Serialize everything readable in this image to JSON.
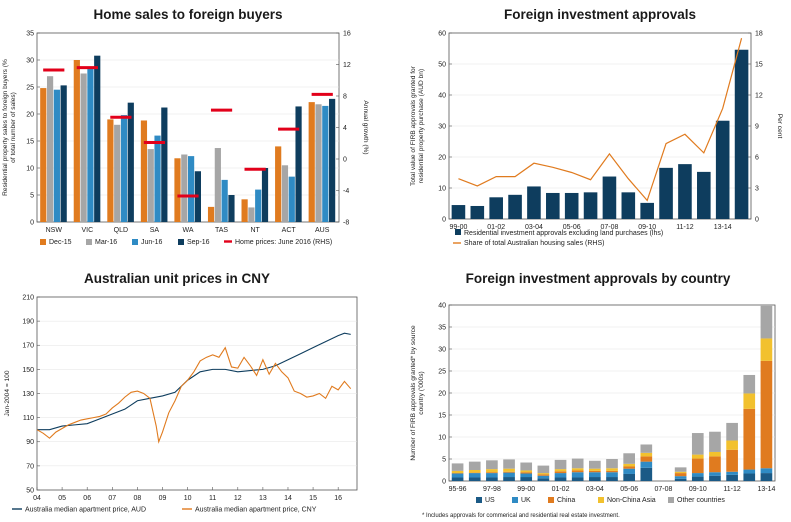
{
  "chart_data": [
    {
      "id": "home-sales",
      "type": "bar",
      "title": "Home sales to foreign buyers",
      "ylabel": "Residential property sales to foreign buyers (% of total number of sales)",
      "y2label": "Annual growth (%)",
      "ylim": [
        0,
        35
      ],
      "y2lim": [
        -8,
        16
      ],
      "yticks": [
        "0",
        "5",
        "10",
        "15",
        "20",
        "25",
        "30",
        "35"
      ],
      "y2ticks": [
        "-8",
        "-4",
        "0",
        "4",
        "8",
        "12",
        "16"
      ],
      "categories": [
        "NSW",
        "VIC",
        "QLD",
        "SA",
        "WA",
        "TAS",
        "NT",
        "ACT",
        "AUS"
      ],
      "series": [
        {
          "name": "Dec-15",
          "color": "#e07b1f",
          "values": [
            24.8,
            30.0,
            19.0,
            18.8,
            11.8,
            2.8,
            4.2,
            14.0,
            22.2
          ]
        },
        {
          "name": "Mar-16",
          "color": "#a6a6a6",
          "values": [
            27.0,
            27.5,
            18.0,
            13.5,
            12.5,
            13.7,
            2.7,
            10.5,
            21.8
          ]
        },
        {
          "name": "Jun-16",
          "color": "#2f8bc4",
          "values": [
            24.5,
            28.5,
            19.8,
            16.0,
            12.2,
            7.8,
            6.0,
            8.4,
            21.5
          ]
        },
        {
          "name": "Sep-16",
          "color": "#0e3d5e",
          "values": [
            25.3,
            30.8,
            22.1,
            21.2,
            9.4,
            5.0,
            10.0,
            21.4,
            22.8
          ]
        }
      ],
      "rhs_series": {
        "name": "Home prices: June 2016 (RHS)",
        "color": "#e2001a",
        "values": [
          11.3,
          11.6,
          5.3,
          2.1,
          -4.7,
          6.2,
          -1.3,
          3.8,
          8.2
        ]
      },
      "legend": "bottom"
    },
    {
      "id": "firb-approvals",
      "type": "bar",
      "title": "Foreign investment approvals",
      "ylabel": "Total value of FIRB approvals granted for residential property purchase (AUD bn)",
      "y2label": "Per cent",
      "ylim": [
        0,
        60
      ],
      "y2lim": [
        0,
        18
      ],
      "yticks": [
        "0",
        "10",
        "20",
        "30",
        "40",
        "50",
        "60"
      ],
      "y2ticks": [
        "0",
        "3",
        "6",
        "9",
        "12",
        "15",
        "18"
      ],
      "xticklabels": [
        "99-00",
        "01-02",
        "03-04",
        "05-06",
        "07-08",
        "09-10",
        "11-12",
        "13-14"
      ],
      "values": [
        4.5,
        4.2,
        7.0,
        7.8,
        10.5,
        8.4,
        8.4,
        8.6,
        13.7,
        8.6,
        5.2,
        16.5,
        17.7,
        15.2,
        31.7,
        54.6
      ],
      "line_values": [
        3.9,
        3.2,
        4.1,
        4.1,
        5.4,
        5.0,
        4.5,
        3.8,
        6.3,
        3.9,
        1.8,
        7.3,
        8.2,
        6.4,
        10.7,
        17.5
      ],
      "series_names": [
        "Residential investment approvals excluding land purchases (lhs)",
        "Share of total Australian housing sales (RHS)"
      ],
      "colors": {
        "bar": "#0e3d5e",
        "line": "#e07b1f"
      },
      "legend": "bottom"
    },
    {
      "id": "unit-prices-cny",
      "type": "line",
      "title": "Australian unit prices in CNY",
      "ylabel": "Jan-2004 = 100",
      "ylim": [
        50,
        210
      ],
      "yticks": [
        "50",
        "70",
        "90",
        "110",
        "130",
        "150",
        "170",
        "190",
        "210"
      ],
      "xticklabels": [
        "04",
        "05",
        "06",
        "07",
        "08",
        "09",
        "10",
        "11",
        "12",
        "13",
        "14",
        "15",
        "16"
      ],
      "x_range": [
        2004.0,
        2016.75
      ],
      "series": [
        {
          "name": "Australia median apartment price, AUD",
          "color": "#0e3d5e",
          "x": [
            2004.0,
            2004.5,
            2005.0,
            2005.5,
            2006.0,
            2006.5,
            2007.0,
            2007.5,
            2008.0,
            2008.5,
            2009.0,
            2009.5,
            2010.0,
            2010.5,
            2011.0,
            2011.5,
            2012.0,
            2012.5,
            2013.0,
            2013.5,
            2014.0,
            2014.5,
            2015.0,
            2015.5,
            2016.0,
            2016.25,
            2016.5
          ],
          "y": [
            100,
            100,
            103,
            104,
            105,
            109,
            113,
            117,
            124,
            126,
            128,
            131,
            141,
            148,
            150,
            150,
            148,
            149,
            150,
            153,
            158,
            163,
            168,
            173,
            178,
            180,
            179
          ]
        },
        {
          "name": "Australia median apartment price, CNY",
          "color": "#e07b1f",
          "x": [
            2004.0,
            2004.25,
            2004.5,
            2004.75,
            2005.0,
            2005.25,
            2005.5,
            2005.75,
            2006.0,
            2006.25,
            2006.5,
            2006.75,
            2007.0,
            2007.25,
            2007.5,
            2007.75,
            2008.0,
            2008.25,
            2008.5,
            2008.75,
            2008.85,
            2009.0,
            2009.25,
            2009.5,
            2009.75,
            2010.0,
            2010.25,
            2010.5,
            2010.75,
            2011.0,
            2011.25,
            2011.5,
            2011.75,
            2012.0,
            2012.25,
            2012.5,
            2012.75,
            2013.0,
            2013.25,
            2013.5,
            2013.75,
            2014.0,
            2014.25,
            2014.5,
            2014.75,
            2015.0,
            2015.25,
            2015.5,
            2015.75,
            2016.0,
            2016.25,
            2016.5
          ],
          "y": [
            100,
            97,
            93,
            98,
            101,
            104,
            106,
            108,
            109,
            110,
            111,
            113,
            118,
            122,
            127,
            131,
            132,
            130,
            126,
            103,
            90,
            98,
            114,
            124,
            136,
            141,
            148,
            157,
            160,
            162,
            160,
            168,
            152,
            151,
            160,
            153,
            145,
            158,
            146,
            155,
            148,
            143,
            132,
            130,
            127,
            128,
            130,
            126,
            136,
            133,
            140,
            134
          ]
        }
      ],
      "legend": "bottom"
    },
    {
      "id": "firb-by-country",
      "type": "bar",
      "stacked": true,
      "title": "Foreign investment approvals by country",
      "ylabel": "Number of FIRB approvals granted* by source country ('000s)",
      "ylim": [
        0,
        40
      ],
      "yticks": [
        "0",
        "5",
        "10",
        "15",
        "20",
        "25",
        "30",
        "35",
        "40"
      ],
      "xticklabels": [
        "95-96",
        "97-98",
        "99-00",
        "01-02",
        "03-04",
        "05-06",
        "07-08",
        "09-10",
        "11-12",
        "13-14"
      ],
      "series": [
        {
          "name": "US",
          "color": "#1b5a86",
          "values": [
            0.8,
            0.8,
            0.8,
            0.9,
            0.9,
            0.6,
            0.8,
            0.8,
            0.9,
            0.9,
            1.6,
            3.0,
            0,
            0.5,
            1.0,
            1.2,
            1.4,
            1.7,
            1.8
          ]
        },
        {
          "name": "UK",
          "color": "#2f8bc4",
          "values": [
            0.9,
            1.0,
            1.0,
            1.0,
            0.8,
            0.6,
            1.0,
            1.2,
            1.1,
            1.1,
            1.2,
            1.4,
            0,
            0.6,
            0.8,
            0.8,
            0.7,
            0.9,
            1.1
          ]
        },
        {
          "name": "China",
          "color": "#e07b1f",
          "values": [
            0.1,
            0.1,
            0.2,
            0.2,
            0.3,
            0.3,
            0.4,
            0.4,
            0.3,
            0.3,
            0.5,
            1.2,
            0,
            0.7,
            3.3,
            3.6,
            5.0,
            13.8,
            24.4
          ]
        },
        {
          "name": "Non-China Asia",
          "color": "#f2c12e",
          "values": [
            0.5,
            0.6,
            0.7,
            0.7,
            0.4,
            0.3,
            0.5,
            0.5,
            0.5,
            0.6,
            0.6,
            0.8,
            0,
            0.3,
            0.9,
            1.0,
            2.1,
            3.5,
            5.1
          ]
        },
        {
          "name": "Other countries",
          "color": "#a6a6a6",
          "values": [
            1.7,
            1.9,
            2.0,
            2.1,
            1.8,
            1.7,
            2.1,
            2.2,
            1.8,
            2.1,
            2.4,
            1.9,
            0,
            1.0,
            4.9,
            4.6,
            4.0,
            4.2,
            7.4
          ]
        }
      ],
      "footnote": "* Includes approvals for commerical and residential real estate investment.",
      "legend": "bottom"
    }
  ]
}
